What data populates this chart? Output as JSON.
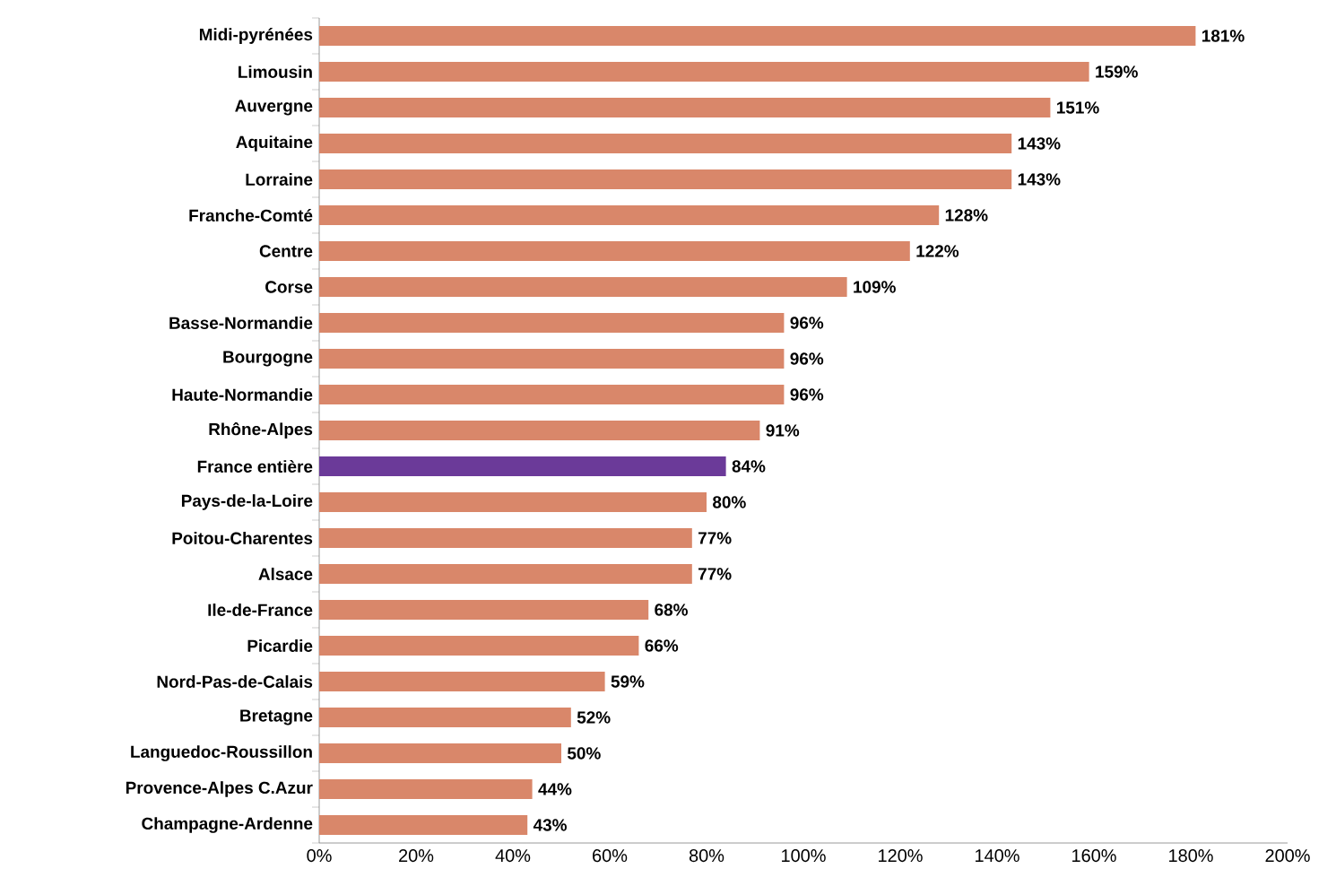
{
  "chart_data": {
    "type": "bar",
    "orientation": "horizontal",
    "categories": [
      "Midi-pyrénées",
      "Limousin",
      "Auvergne",
      "Aquitaine",
      "Lorraine",
      "Franche-Comté",
      "Centre",
      "Corse",
      "Basse-Normandie",
      "Bourgogne",
      "Haute-Normandie",
      "Rhône-Alpes",
      "France entière",
      "Pays-de-la-Loire",
      "Poitou-Charentes",
      "Alsace",
      "Ile-de-France",
      "Picardie",
      "Nord-Pas-de-Calais",
      "Bretagne",
      "Languedoc-Roussillon",
      "Provence-Alpes C.Azur",
      "Champagne-Ardenne"
    ],
    "values": [
      181,
      159,
      151,
      143,
      143,
      128,
      122,
      109,
      96,
      96,
      96,
      91,
      84,
      80,
      77,
      77,
      68,
      66,
      59,
      52,
      50,
      44,
      43
    ],
    "value_labels": [
      "181%",
      "159%",
      "151%",
      "143%",
      "143%",
      "128%",
      "122%",
      "109%",
      "96%",
      "96%",
      "96%",
      "91%",
      "84%",
      "80%",
      "77%",
      "77%",
      "68%",
      "66%",
      "59%",
      "52%",
      "50%",
      "44%",
      "43%"
    ],
    "colors": [
      "#d9876a",
      "#d9876a",
      "#d9876a",
      "#d9876a",
      "#d9876a",
      "#d9876a",
      "#d9876a",
      "#d9876a",
      "#d9876a",
      "#d9876a",
      "#d9876a",
      "#d9876a",
      "#6b3a99",
      "#d9876a",
      "#d9876a",
      "#d9876a",
      "#d9876a",
      "#d9876a",
      "#d9876a",
      "#d9876a",
      "#d9876a",
      "#d9876a",
      "#d9876a"
    ],
    "xlim": [
      0,
      200
    ],
    "xticks": [
      {
        "value": 0,
        "label": "0%"
      },
      {
        "value": 20,
        "label": "20%"
      },
      {
        "value": 40,
        "label": "40%"
      },
      {
        "value": 60,
        "label": "60%"
      },
      {
        "value": 80,
        "label": "80%"
      },
      {
        "value": 100,
        "label": "100%"
      },
      {
        "value": 120,
        "label": "120%"
      },
      {
        "value": 140,
        "label": "140%"
      },
      {
        "value": 160,
        "label": "160%"
      },
      {
        "value": 180,
        "label": "180%"
      },
      {
        "value": 200,
        "label": "200%"
      }
    ],
    "grid": false
  }
}
